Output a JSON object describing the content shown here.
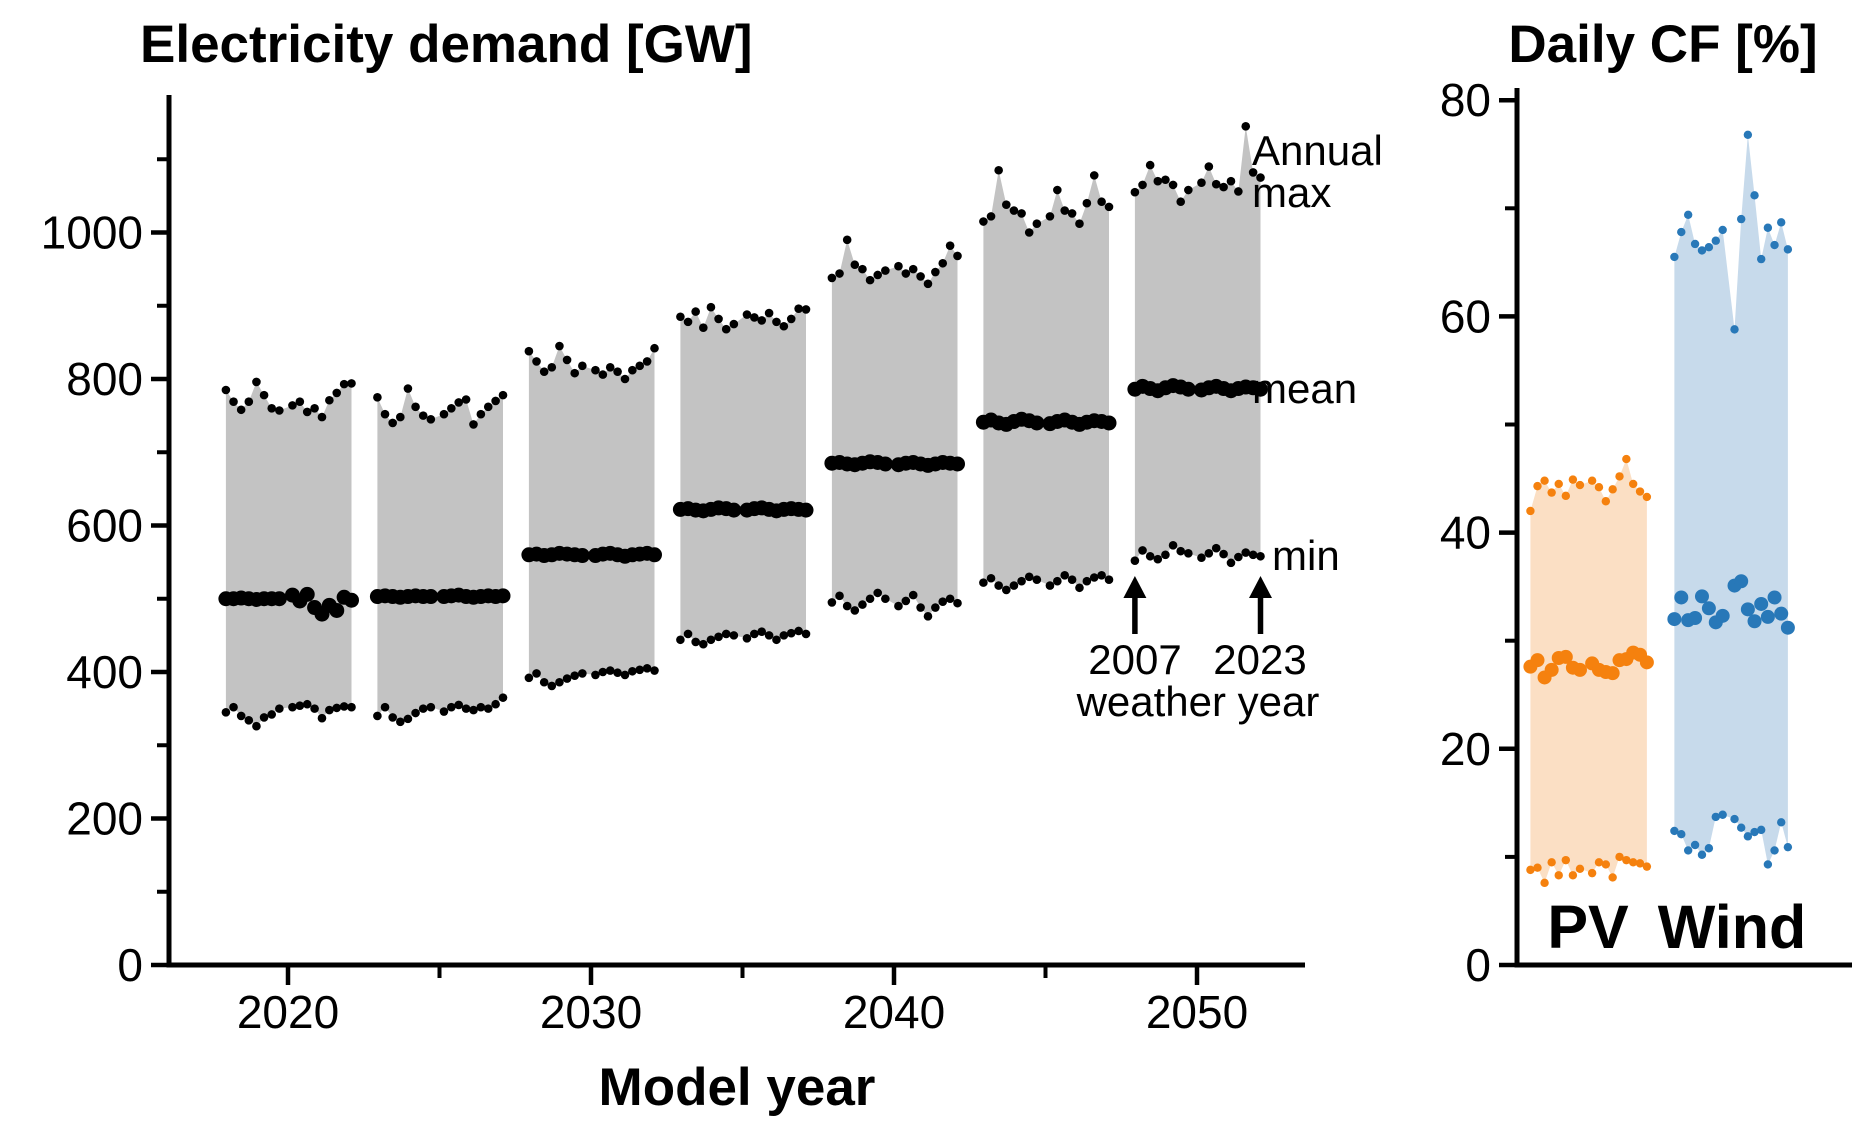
{
  "chart_data": [
    {
      "type": "area",
      "panel": "electricity-demand",
      "title": "Electricity demand [GW]",
      "xlabel": "Model year",
      "ylabel": "",
      "grid": false,
      "x_axis": {
        "range": [
          2015.3,
          2053.5
        ],
        "ticks_major": [
          2020,
          2030,
          2040,
          2050
        ],
        "ticks_minor": [
          2025,
          2035,
          2045
        ]
      },
      "y_axis": {
        "range": [
          0,
          1185
        ],
        "ticks_major": [
          0,
          200,
          400,
          600,
          800,
          1000
        ],
        "ticks_minor": [
          100,
          300,
          500,
          700,
          900,
          1100
        ]
      },
      "labels": {
        "max_line1": "Annual",
        "max_line2": "max",
        "mean": "mean",
        "min": "min"
      },
      "annotations": {
        "first_weather_year": "2007",
        "last_weather_year": "2023",
        "caption": "weather year"
      },
      "band_color": "#c3c3c3",
      "dot_color": "#000000",
      "band_half_width_years": 2.1,
      "samples_per_group": 17,
      "groups": [
        {
          "model_year": 2020,
          "max": [
            785,
            769,
            758,
            769,
            796,
            778,
            760,
            757,
            764,
            769,
            755,
            760,
            748,
            771,
            781,
            793,
            794
          ],
          "mean": [
            500,
            500,
            501,
            500,
            499,
            500,
            500,
            500,
            505,
            497,
            506,
            488,
            479,
            491,
            484,
            502,
            498
          ],
          "min": [
            345,
            352,
            340,
            334,
            326,
            338,
            342,
            350,
            352,
            354,
            356,
            350,
            337,
            348,
            351,
            353,
            352
          ]
        },
        {
          "model_year": 2025,
          "max": [
            775,
            752,
            740,
            748,
            787,
            762,
            750,
            745,
            752,
            760,
            768,
            772,
            738,
            752,
            762,
            770,
            778
          ],
          "mean": [
            503,
            504,
            503,
            502,
            503,
            504,
            503,
            503,
            503,
            504,
            505,
            503,
            502,
            503,
            504,
            503,
            504
          ],
          "min": [
            340,
            352,
            338,
            332,
            336,
            344,
            350,
            352,
            346,
            352,
            355,
            350,
            348,
            352,
            350,
            356,
            365
          ]
        },
        {
          "model_year": 2030,
          "max": [
            838,
            824,
            810,
            816,
            845,
            826,
            808,
            818,
            812,
            806,
            816,
            810,
            800,
            812,
            818,
            824,
            842
          ],
          "mean": [
            560,
            561,
            559,
            560,
            562,
            561,
            560,
            559,
            559,
            561,
            562,
            560,
            558,
            560,
            561,
            562,
            560
          ],
          "min": [
            392,
            398,
            386,
            381,
            386,
            391,
            395,
            398,
            396,
            400,
            402,
            399,
            396,
            401,
            403,
            405,
            402
          ]
        },
        {
          "model_year": 2035,
          "max": [
            885,
            878,
            892,
            870,
            898,
            882,
            868,
            875,
            888,
            884,
            880,
            890,
            878,
            872,
            882,
            896,
            895
          ],
          "mean": [
            622,
            623,
            621,
            620,
            622,
            624,
            623,
            621,
            621,
            623,
            624,
            622,
            620,
            622,
            623,
            622,
            621
          ],
          "min": [
            444,
            452,
            441,
            438,
            444,
            448,
            452,
            450,
            446,
            452,
            455,
            450,
            444,
            450,
            453,
            456,
            452
          ]
        },
        {
          "model_year": 2040,
          "max": [
            938,
            944,
            990,
            956,
            950,
            935,
            942,
            948,
            954,
            944,
            950,
            940,
            930,
            946,
            958,
            982,
            968
          ],
          "mean": [
            685,
            686,
            684,
            683,
            685,
            687,
            686,
            684,
            683,
            685,
            686,
            684,
            682,
            684,
            686,
            685,
            684
          ],
          "min": [
            495,
            504,
            490,
            484,
            492,
            500,
            508,
            500,
            490,
            497,
            505,
            488,
            476,
            488,
            496,
            500,
            494
          ]
        },
        {
          "model_year": 2045,
          "max": [
            1015,
            1022,
            1085,
            1038,
            1030,
            1026,
            1000,
            1012,
            1022,
            1058,
            1030,
            1026,
            1012,
            1040,
            1078,
            1042,
            1035
          ],
          "mean": [
            741,
            744,
            740,
            738,
            742,
            745,
            743,
            740,
            739,
            742,
            744,
            741,
            738,
            741,
            743,
            742,
            740
          ],
          "min": [
            522,
            528,
            518,
            512,
            518,
            524,
            530,
            526,
            518,
            524,
            532,
            526,
            515,
            524,
            529,
            532,
            526
          ]
        },
        {
          "model_year": 2050,
          "max": [
            1055,
            1065,
            1092,
            1070,
            1072,
            1065,
            1042,
            1058,
            1068,
            1090,
            1066,
            1062,
            1070,
            1056,
            1145,
            1082,
            1075
          ],
          "mean": [
            786,
            790,
            787,
            784,
            788,
            791,
            789,
            786,
            785,
            788,
            790,
            787,
            784,
            787,
            789,
            788,
            786
          ],
          "min": [
            552,
            566,
            558,
            554,
            560,
            573,
            565,
            562,
            556,
            562,
            569,
            561,
            549,
            557,
            563,
            560,
            558
          ]
        }
      ]
    },
    {
      "type": "area",
      "panel": "daily-capacity-factor",
      "title": "Daily CF [%]",
      "xlabel": "",
      "ylabel": "",
      "grid": false,
      "y_axis": {
        "range": [
          0,
          81
        ],
        "ticks_major": [
          0,
          20,
          40,
          60,
          80
        ],
        "ticks_minor": [
          10,
          30,
          50,
          70
        ]
      },
      "series": [
        {
          "name": "PV",
          "dot_color": "#f5810e",
          "fill_color": "#fbdfc4",
          "max": [
            42.0,
            44.3,
            44.8,
            43.7,
            44.5,
            43.4,
            44.9,
            44.4,
            44.8,
            44.2,
            42.9,
            44.0,
            45.2,
            46.8,
            44.5,
            43.8,
            43.3
          ],
          "mean": [
            27.6,
            28.2,
            26.6,
            27.3,
            28.4,
            28.5,
            27.5,
            27.3,
            27.9,
            27.3,
            27.1,
            27.0,
            28.2,
            28.3,
            28.9,
            28.7,
            28.0
          ],
          "min": [
            8.8,
            9.0,
            7.6,
            9.5,
            8.3,
            9.7,
            8.3,
            8.9,
            8.5,
            9.5,
            9.3,
            8.1,
            10.0,
            9.7,
            9.5,
            9.4,
            9.1
          ]
        },
        {
          "name": "Wind",
          "dot_color": "#2878b8",
          "fill_color": "#c7daeb",
          "max": [
            65.5,
            67.8,
            69.4,
            66.7,
            66.1,
            66.4,
            67.0,
            68.0,
            58.8,
            69.0,
            76.8,
            71.2,
            65.3,
            68.2,
            66.6,
            68.7,
            66.2
          ],
          "mean": [
            32.0,
            34.0,
            31.9,
            32.1,
            34.1,
            33.0,
            31.7,
            32.3,
            35.1,
            35.5,
            32.9,
            31.8,
            33.4,
            32.2,
            34.0,
            32.5,
            31.2
          ],
          "min": [
            12.4,
            12.1,
            10.6,
            11.1,
            10.2,
            10.8,
            13.7,
            13.9,
            13.5,
            12.7,
            11.9,
            12.3,
            12.5,
            9.3,
            10.6,
            13.2,
            10.9
          ]
        }
      ]
    }
  ]
}
